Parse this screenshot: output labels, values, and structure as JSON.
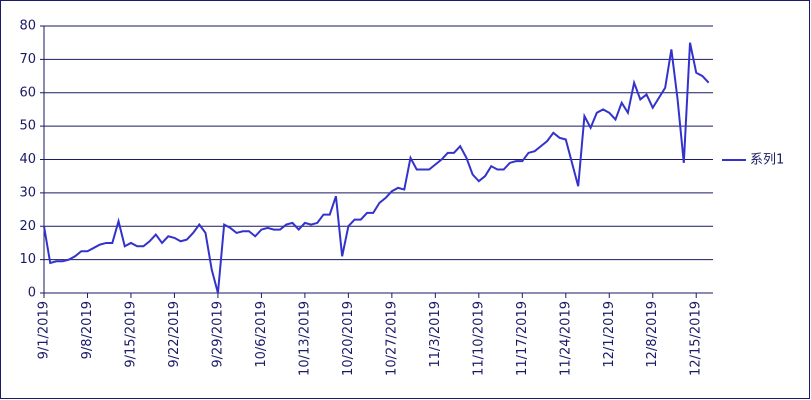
{
  "chart_data": {
    "type": "line",
    "x": [
      "9/1/2019",
      "9/2/2019",
      "9/3/2019",
      "9/4/2019",
      "9/5/2019",
      "9/6/2019",
      "9/7/2019",
      "9/8/2019",
      "9/9/2019",
      "9/10/2019",
      "9/11/2019",
      "9/12/2019",
      "9/13/2019",
      "9/14/2019",
      "9/15/2019",
      "9/16/2019",
      "9/17/2019",
      "9/18/2019",
      "9/19/2019",
      "9/20/2019",
      "9/21/2019",
      "9/22/2019",
      "9/23/2019",
      "9/24/2019",
      "9/25/2019",
      "9/26/2019",
      "9/27/2019",
      "9/28/2019",
      "9/29/2019",
      "9/30/2019",
      "10/1/2019",
      "10/2/2019",
      "10/3/2019",
      "10/4/2019",
      "10/5/2019",
      "10/6/2019",
      "10/7/2019",
      "10/8/2019",
      "10/9/2019",
      "10/10/2019",
      "10/11/2019",
      "10/12/2019",
      "10/13/2019",
      "10/14/2019",
      "10/15/2019",
      "10/16/2019",
      "10/17/2019",
      "10/18/2019",
      "10/19/2019",
      "10/20/2019",
      "10/21/2019",
      "10/22/2019",
      "10/23/2019",
      "10/24/2019",
      "10/25/2019",
      "10/26/2019",
      "10/27/2019",
      "10/28/2019",
      "10/29/2019",
      "10/30/2019",
      "10/31/2019",
      "11/1/2019",
      "11/2/2019",
      "11/3/2019",
      "11/4/2019",
      "11/5/2019",
      "11/6/2019",
      "11/7/2019",
      "11/8/2019",
      "11/9/2019",
      "11/10/2019",
      "11/11/2019",
      "11/12/2019",
      "11/13/2019",
      "11/14/2019",
      "11/15/2019",
      "11/16/2019",
      "11/17/2019",
      "11/18/2019",
      "11/19/2019",
      "11/20/2019",
      "11/21/2019",
      "11/22/2019",
      "11/23/2019",
      "11/24/2019",
      "11/25/2019",
      "11/26/2019",
      "11/27/2019",
      "11/28/2019",
      "11/29/2019",
      "11/30/2019",
      "12/1/2019",
      "12/2/2019",
      "12/3/2019",
      "12/4/2019",
      "12/5/2019",
      "12/6/2019",
      "12/7/2019",
      "12/8/2019",
      "12/9/2019",
      "12/10/2019",
      "12/11/2019",
      "12/12/2019",
      "12/13/2019",
      "12/14/2019",
      "12/15/2019",
      "12/16/2019",
      "12/17/2019"
    ],
    "series": [
      {
        "name": "系列1",
        "color": "#3333cc",
        "values": [
          20,
          9,
          9.5,
          9.5,
          10,
          11,
          12.5,
          12.5,
          13.5,
          14.5,
          15,
          15,
          21.5,
          14,
          15,
          14,
          14,
          15.5,
          17.5,
          15,
          17,
          16.5,
          15.5,
          16,
          18,
          20.5,
          18,
          7,
          0,
          20.5,
          19.5,
          18,
          18.5,
          18.5,
          17,
          19,
          19.5,
          19,
          19,
          20.5,
          21,
          19,
          21,
          20.5,
          21,
          23.5,
          23.5,
          29,
          11,
          20,
          22,
          22,
          24,
          24,
          27,
          28.5,
          30.5,
          31.5,
          31,
          40.5,
          37,
          37,
          37,
          38.5,
          40,
          42,
          42,
          44,
          40.5,
          35.5,
          33.5,
          35,
          38,
          37,
          37,
          39,
          39.5,
          39.5,
          42,
          42.5,
          44,
          45.5,
          48,
          46.5,
          46,
          39,
          32,
          53,
          49.5,
          54,
          55,
          54,
          52,
          57,
          54,
          63,
          58,
          59.5,
          55.5,
          58.5,
          61.5,
          73,
          58,
          39,
          75,
          66,
          65,
          63
        ]
      }
    ],
    "xticks": [
      "9/1/2019",
      "9/8/2019",
      "9/15/2019",
      "9/22/2019",
      "9/29/2019",
      "10/6/2019",
      "10/13/2019",
      "10/20/2019",
      "10/27/2019",
      "11/3/2019",
      "11/10/2019",
      "11/17/2019",
      "11/24/2019",
      "12/1/2019",
      "12/8/2019",
      "12/15/2019"
    ],
    "ylim": [
      0,
      80
    ],
    "yticks": [
      0,
      10,
      20,
      30,
      40,
      50,
      60,
      70,
      80
    ],
    "grid": true,
    "legend": "right"
  }
}
